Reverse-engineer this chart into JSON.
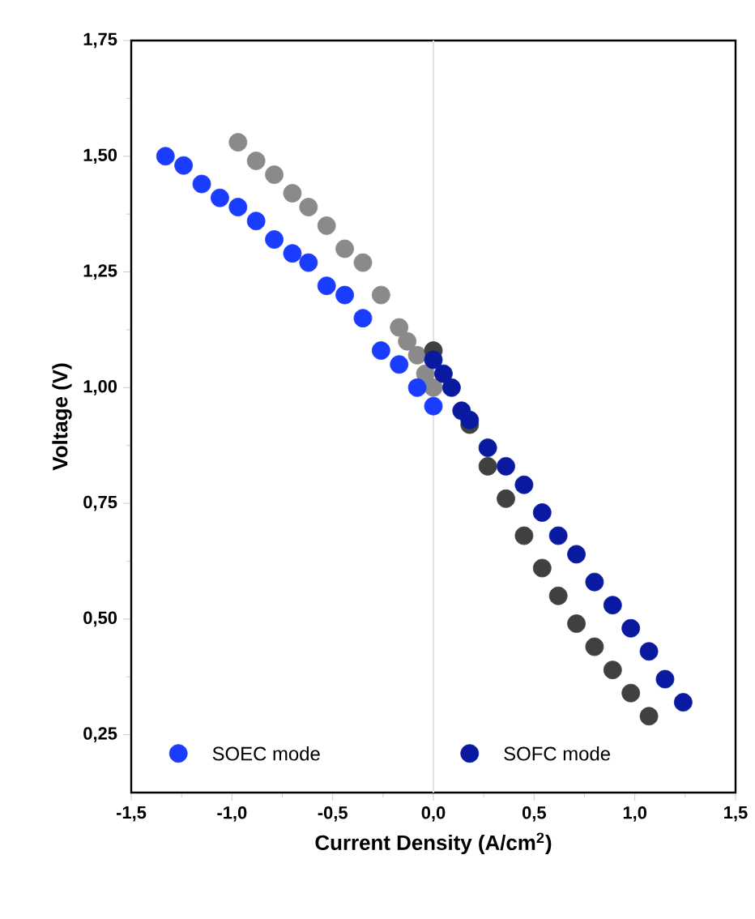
{
  "chart_data": {
    "type": "scatter",
    "xlabel": "Current Density (A/cm$^{2}$)",
    "ylabel": "Voltage (V)",
    "xlim": [
      -1.5,
      1.5
    ],
    "ylim": [
      0.125,
      1.75
    ],
    "xticks": [
      {
        "value": -1.5,
        "label": "-1,5"
      },
      {
        "value": -1.0,
        "label": "-1,0"
      },
      {
        "value": -0.5,
        "label": "-0,5"
      },
      {
        "value": 0.0,
        "label": "0,0"
      },
      {
        "value": 0.5,
        "label": "0,5"
      },
      {
        "value": 1.0,
        "label": "1,0"
      },
      {
        "value": 1.5,
        "label": "1,5"
      }
    ],
    "yticks": [
      {
        "value": 0.25,
        "label": "0,25"
      },
      {
        "value": 0.5,
        "label": "0,50"
      },
      {
        "value": 0.75,
        "label": "0,75"
      },
      {
        "value": 1.0,
        "label": "1,00"
      },
      {
        "value": 1.25,
        "label": "1,25"
      },
      {
        "value": 1.5,
        "label": "1,50"
      },
      {
        "value": 1.75,
        "label": "1,75"
      }
    ],
    "marker": "circle",
    "legend": "bottom",
    "ref_lines": [
      {
        "axis": "x",
        "value": 0,
        "color": "#e2e2e2"
      }
    ],
    "series": [
      {
        "name": "SOEC mode",
        "color": "#1a3cff",
        "x": [
          -1.33,
          -1.24,
          -1.15,
          -1.06,
          -0.97,
          -0.88,
          -0.79,
          -0.7,
          -0.62,
          -0.53,
          -0.44,
          -0.35,
          -0.26,
          -0.17,
          -0.08,
          0.0
        ],
        "values": [
          1.5,
          1.48,
          1.44,
          1.41,
          1.39,
          1.36,
          1.32,
          1.29,
          1.27,
          1.22,
          1.2,
          1.15,
          1.08,
          1.05,
          1.0,
          0.96
        ]
      },
      {
        "name": "SOFC mode",
        "color": "#0a1aa0",
        "x": [
          0.0,
          0.05,
          0.09,
          0.14,
          0.18,
          0.27,
          0.36,
          0.45,
          0.54,
          0.62,
          0.71,
          0.8,
          0.89,
          0.98,
          1.07,
          1.15,
          1.24
        ],
        "values": [
          1.06,
          1.03,
          1.0,
          0.95,
          0.93,
          0.87,
          0.83,
          0.79,
          0.73,
          0.68,
          0.64,
          0.58,
          0.53,
          0.48,
          0.43,
          0.37,
          0.32
        ]
      },
      {
        "color": "#8a8a8a",
        "x": [
          -0.97,
          -0.88,
          -0.79,
          -0.7,
          -0.62,
          -0.53,
          -0.44,
          -0.35,
          -0.26,
          -0.17,
          -0.13,
          -0.08,
          -0.04,
          0.0
        ],
        "values": [
          1.53,
          1.49,
          1.46,
          1.42,
          1.39,
          1.35,
          1.3,
          1.27,
          1.2,
          1.13,
          1.1,
          1.07,
          1.03,
          1.0
        ]
      },
      {
        "color": "#404040",
        "x": [
          0.0,
          0.05,
          0.09,
          0.18,
          0.27,
          0.36,
          0.45,
          0.54,
          0.62,
          0.71,
          0.8,
          0.89,
          0.98,
          1.07
        ],
        "values": [
          1.08,
          null,
          null,
          0.92,
          0.83,
          0.76,
          0.68,
          0.61,
          0.55,
          0.49,
          0.44,
          0.39,
          0.34,
          0.29
        ]
      }
    ]
  }
}
